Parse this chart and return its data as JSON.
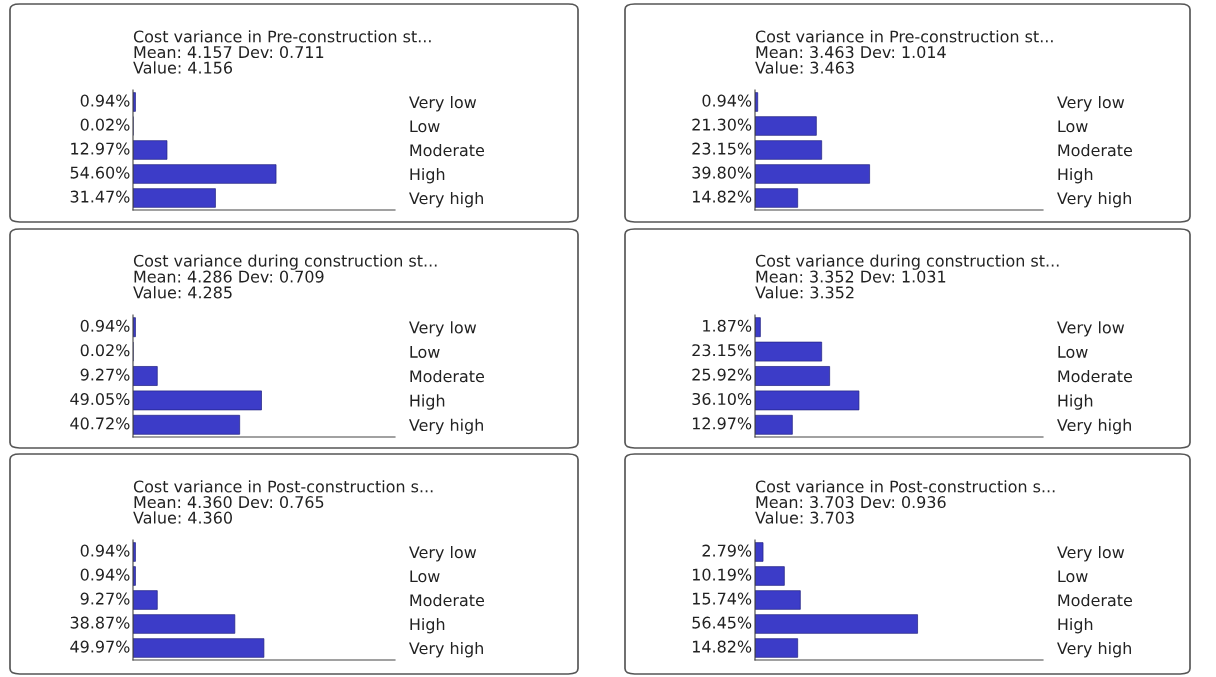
{
  "chart_data": [
    {
      "type": "bar",
      "orientation": "horizontal",
      "title": "Cost variance in Pre-construction st...",
      "subtitle": "Mean: 4.157 Dev: 0.711",
      "annotations": [
        "Value: 4.156"
      ],
      "categories": [
        "Very low",
        "Low",
        "Moderate",
        "High",
        "Very high"
      ],
      "values": [
        0.94,
        0.02,
        12.97,
        54.6,
        31.47
      ],
      "value_labels": [
        "0.94%",
        "0.02%",
        "12.97%",
        "54.60%",
        "31.47%"
      ],
      "color": "#3c3cc8",
      "xlim": [
        0,
        100
      ],
      "tick_labels": "y",
      "grid": false,
      "legend": false
    },
    {
      "type": "bar",
      "orientation": "horizontal",
      "title": "Cost variance in Pre-construction st...",
      "subtitle": "Mean: 3.463 Dev: 1.014",
      "annotations": [
        "Value: 3.463"
      ],
      "categories": [
        "Very low",
        "Low",
        "Moderate",
        "High",
        "Very high"
      ],
      "values": [
        0.94,
        21.3,
        23.15,
        39.8,
        14.82
      ],
      "value_labels": [
        "0.94%",
        "21.30%",
        "23.15%",
        "39.80%",
        "14.82%"
      ],
      "color": "#3c3cc8",
      "xlim": [
        0,
        100
      ],
      "tick_labels": "y",
      "grid": false,
      "legend": false
    },
    {
      "type": "bar",
      "orientation": "horizontal",
      "title": "Cost variance during construction st...",
      "subtitle": "Mean: 4.286 Dev: 0.709",
      "annotations": [
        "Value: 4.285"
      ],
      "categories": [
        "Very low",
        "Low",
        "Moderate",
        "High",
        "Very high"
      ],
      "values": [
        0.94,
        0.02,
        9.27,
        49.05,
        40.72
      ],
      "value_labels": [
        "0.94%",
        "0.02%",
        "9.27%",
        "49.05%",
        "40.72%"
      ],
      "color": "#3c3cc8",
      "xlim": [
        0,
        100
      ],
      "tick_labels": "y",
      "grid": false,
      "legend": false
    },
    {
      "type": "bar",
      "orientation": "horizontal",
      "title": "Cost variance during construction st...",
      "subtitle": "Mean: 3.352 Dev: 1.031",
      "annotations": [
        "Value: 3.352"
      ],
      "categories": [
        "Very low",
        "Low",
        "Moderate",
        "High",
        "Very high"
      ],
      "values": [
        1.87,
        23.15,
        25.92,
        36.1,
        12.97
      ],
      "value_labels": [
        "1.87%",
        "23.15%",
        "25.92%",
        "36.10%",
        "12.97%"
      ],
      "color": "#3c3cc8",
      "xlim": [
        0,
        100
      ],
      "tick_labels": "y",
      "grid": false,
      "legend": false
    },
    {
      "type": "bar",
      "orientation": "horizontal",
      "title": "Cost variance in Post-construction s...",
      "subtitle": "Mean: 4.360 Dev: 0.765",
      "annotations": [
        "Value: 4.360"
      ],
      "categories": [
        "Very low",
        "Low",
        "Moderate",
        "High",
        "Very high"
      ],
      "values": [
        0.94,
        0.94,
        9.27,
        38.87,
        49.97
      ],
      "value_labels": [
        "0.94%",
        "0.94%",
        "9.27%",
        "38.87%",
        "49.97%"
      ],
      "color": "#3c3cc8",
      "xlim": [
        0,
        100
      ],
      "tick_labels": "y",
      "grid": false,
      "legend": false
    },
    {
      "type": "bar",
      "orientation": "horizontal",
      "title": "Cost variance in Post-construction s...",
      "subtitle": "Mean: 3.703 Dev: 0.936",
      "annotations": [
        "Value: 3.703"
      ],
      "categories": [
        "Very low",
        "Low",
        "Moderate",
        "High",
        "Very high"
      ],
      "values": [
        2.79,
        10.19,
        15.74,
        56.45,
        14.82
      ],
      "value_labels": [
        "2.79%",
        "10.19%",
        "15.74%",
        "56.45%",
        "14.82%"
      ],
      "color": "#3c3cc8",
      "xlim": [
        0,
        100
      ],
      "tick_labels": "y",
      "grid": false,
      "legend": false
    }
  ]
}
